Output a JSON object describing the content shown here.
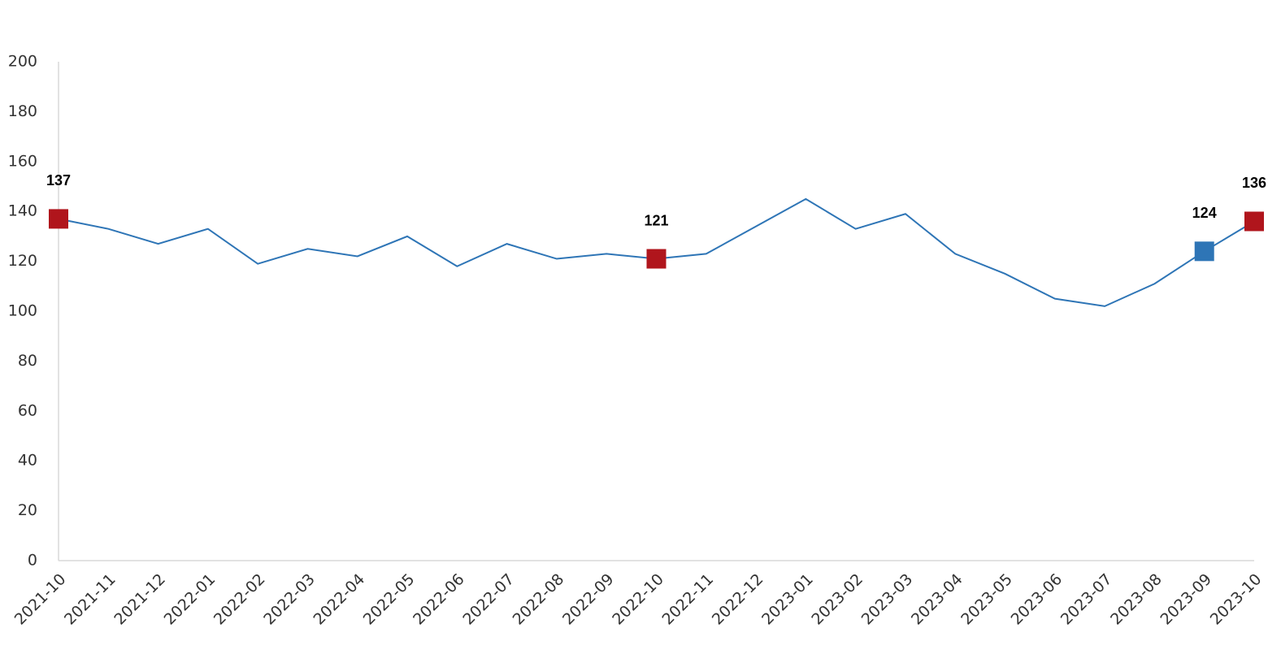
{
  "chart_data": {
    "type": "line",
    "categories": [
      "2021-10",
      "2021-11",
      "2021-12",
      "2022-01",
      "2022-02",
      "2022-03",
      "2022-04",
      "2022-05",
      "2022-06",
      "2022-07",
      "2022-08",
      "2022-09",
      "2022-10",
      "2022-11",
      "2022-12",
      "2023-01",
      "2023-02",
      "2023-03",
      "2023-04",
      "2023-05",
      "2023-06",
      "2023-07",
      "2023-08",
      "2023-09",
      "2023-10"
    ],
    "series": [
      {
        "color": "#2e75b6",
        "values": [
          137,
          133,
          127,
          133,
          119,
          125,
          122,
          130,
          118,
          127,
          121,
          123,
          121,
          123,
          134,
          145,
          133,
          139,
          123,
          115,
          105,
          102,
          111,
          124,
          136
        ]
      }
    ],
    "markers": [
      {
        "index": 0,
        "color": "#b0151c"
      },
      {
        "index": 12,
        "color": "#b0151c"
      },
      {
        "index": 23,
        "color": "#2e75b6"
      },
      {
        "index": 24,
        "color": "#b0151c"
      }
    ],
    "ylim": [
      0,
      200
    ],
    "yticks": [
      0,
      20,
      40,
      60,
      80,
      100,
      120,
      140,
      160,
      180,
      200
    ],
    "grid": false
  }
}
